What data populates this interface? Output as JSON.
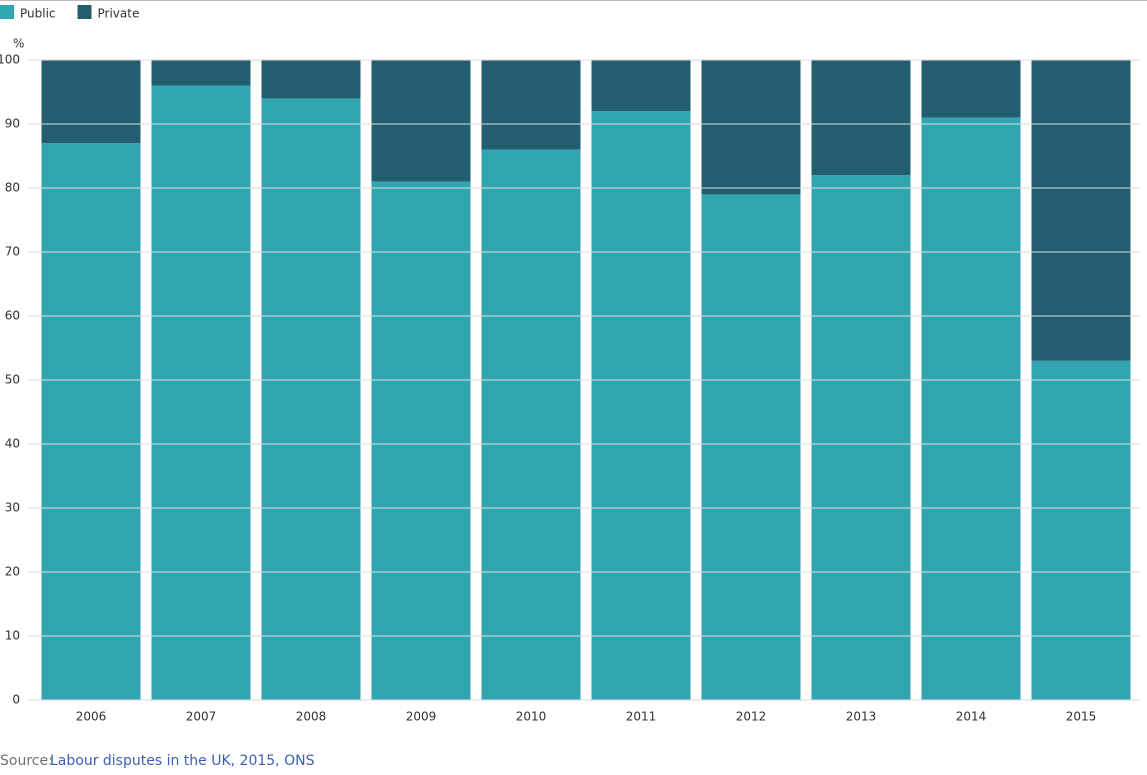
{
  "chart_data": {
    "type": "stacked_bar",
    "y_unit": "%",
    "categories": [
      "2006",
      "2007",
      "2008",
      "2009",
      "2010",
      "2011",
      "2012",
      "2013",
      "2014",
      "2015"
    ],
    "series": [
      {
        "name": "Public",
        "color": "#32a5b2",
        "values": [
          87,
          96,
          94,
          81,
          86,
          92,
          79,
          82,
          91,
          53
        ]
      },
      {
        "name": "Private",
        "color": "#235e70",
        "values": [
          13,
          4,
          6,
          19,
          14,
          8,
          21,
          18,
          9,
          47
        ]
      }
    ],
    "ylim": [
      0,
      100
    ],
    "yticks": [
      0,
      10,
      20,
      30,
      40,
      50,
      60,
      70,
      80,
      90,
      100
    ],
    "grid": true,
    "legend": "top-left",
    "source": {
      "label": "Source:",
      "text": "Labour disputes in the UK, 2015, ONS"
    }
  }
}
